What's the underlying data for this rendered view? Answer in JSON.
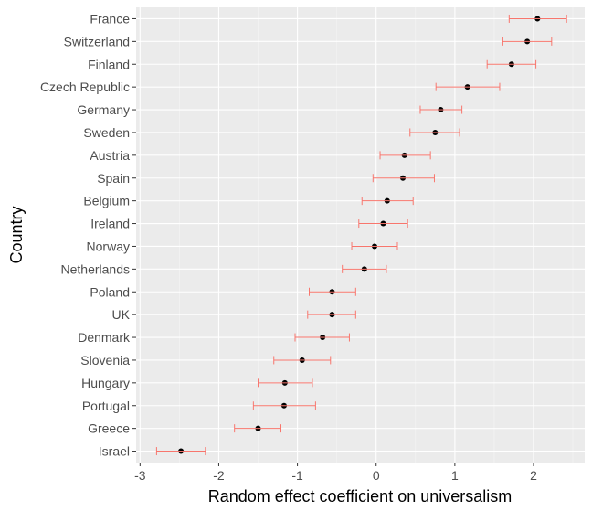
{
  "chart_data": {
    "type": "scatter",
    "title": "",
    "xlabel": "Random effect coefficient on universalism",
    "ylabel": "Country",
    "xlim": [
      -3.05,
      2.65
    ],
    "x_ticks": [
      -3,
      -2,
      -1,
      0,
      1,
      2
    ],
    "x_tick_labels": [
      "-3",
      "-2",
      "-1",
      "0",
      "1",
      "2"
    ],
    "grid": true,
    "legend": "none",
    "colors": {
      "panel_background": "#ebebeb",
      "grid_major": "#ffffff",
      "grid_minor": "#f5f5f5",
      "point": "#000000",
      "error_bar": "#f8766d"
    },
    "categories": [
      "France",
      "Switzerland",
      "Finland",
      "Czech Republic",
      "Germany",
      "Sweden",
      "Austria",
      "Spain",
      "Belgium",
      "Ireland",
      "Norway",
      "Netherlands",
      "Poland",
      "UK",
      "Denmark",
      "Slovenia",
      "Hungary",
      "Portugal",
      "Greece",
      "Israel"
    ],
    "values": [
      2.05,
      1.92,
      1.72,
      1.16,
      0.82,
      0.75,
      0.36,
      0.34,
      0.14,
      0.09,
      -0.02,
      -0.15,
      -0.56,
      -0.56,
      -0.68,
      -0.94,
      -1.16,
      -1.17,
      -1.5,
      -2.48
    ],
    "lower": [
      1.69,
      1.61,
      1.41,
      0.76,
      0.56,
      0.43,
      0.05,
      -0.04,
      -0.18,
      -0.22,
      -0.31,
      -0.43,
      -0.85,
      -0.87,
      -1.03,
      -1.3,
      -1.5,
      -1.56,
      -1.8,
      -2.79
    ],
    "upper": [
      2.42,
      2.23,
      2.03,
      1.57,
      1.09,
      1.06,
      0.69,
      0.74,
      0.47,
      0.4,
      0.27,
      0.13,
      -0.26,
      -0.26,
      -0.34,
      -0.58,
      -0.81,
      -0.77,
      -1.21,
      -2.17
    ]
  }
}
